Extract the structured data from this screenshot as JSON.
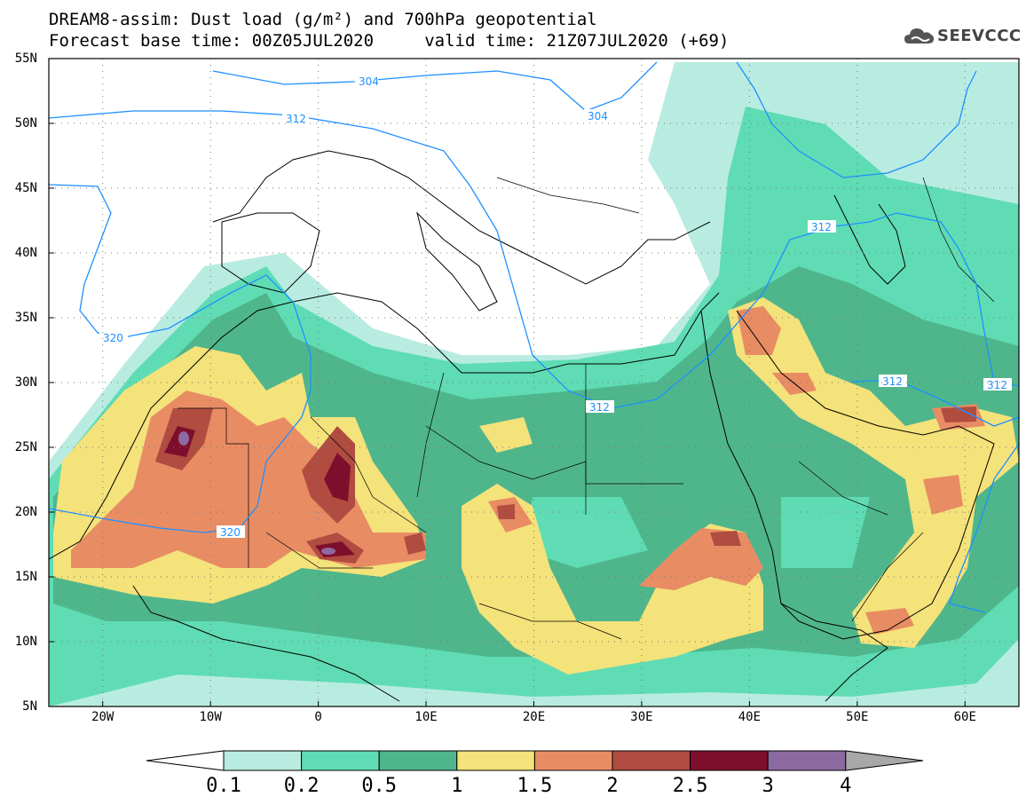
{
  "title": {
    "line1": "DREAM8-assim: Dust load (g/m²) and 700hPa geopotential",
    "line2": "Forecast base time: 00Z05JUL2020     valid time: 21Z07JUL2020 (+69)"
  },
  "logo": {
    "text": "SEEVCCC",
    "icon": "cloud-logo-icon"
  },
  "axes": {
    "lat_labels": [
      "55N",
      "50N",
      "45N",
      "40N",
      "35N",
      "30N",
      "25N",
      "20N",
      "15N",
      "10N",
      "5N"
    ],
    "lon_labels": [
      "20W",
      "10W",
      "0",
      "10E",
      "20E",
      "30E",
      "40E",
      "50E",
      "60E"
    ],
    "lat_range": [
      5,
      55
    ],
    "lon_range": [
      -25,
      65
    ]
  },
  "contours": {
    "variable": "700hPa geopotential",
    "labels": [
      "304",
      "312",
      "320"
    ]
  },
  "colorbar": {
    "labels": [
      "0.1",
      "0.2",
      "0.5",
      "1",
      "1.5",
      "2",
      "2.5",
      "3",
      "4"
    ],
    "colors": [
      "#b9ece1",
      "#5fdcb4",
      "#4fb68c",
      "#f4e27a",
      "#e88c64",
      "#b04c40",
      "#7d0f2c",
      "#8c6aa0",
      "#a8a8a8"
    ]
  },
  "colors": {
    "land_outline": "#000000",
    "contour": "#1e90ff",
    "dust_very_light": "#b9ece1",
    "dust_light": "#5fdcb4",
    "dust_mid": "#4fb68c",
    "dust_yellow": "#f4e27a",
    "dust_orange": "#e88c64",
    "dust_red": "#b04c40",
    "dust_dark": "#7d0f2c",
    "dust_purple": "#8c6aa0"
  }
}
